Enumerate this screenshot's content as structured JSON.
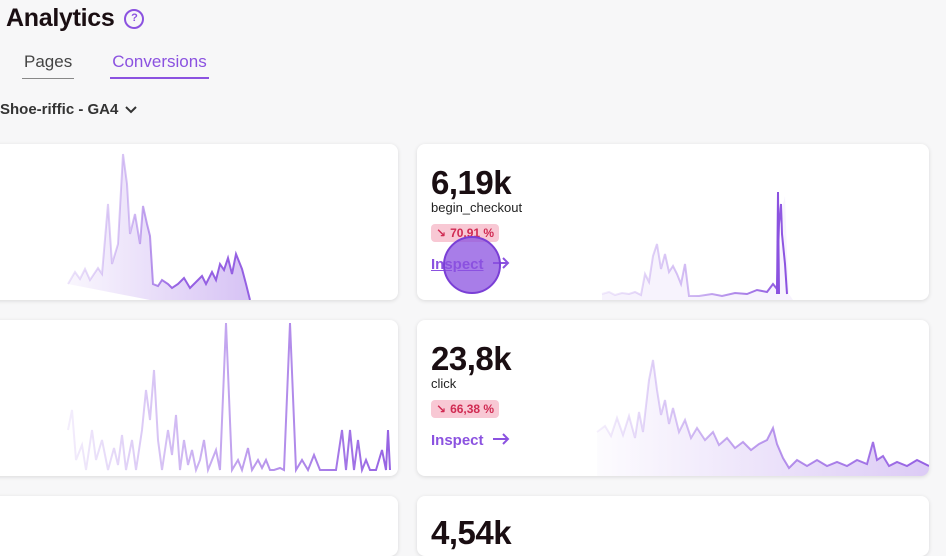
{
  "header": {
    "title": "Analytics",
    "help_icon": "help-circle-icon"
  },
  "tabs": [
    {
      "label": "Pages",
      "active": false
    },
    {
      "label": "Conversions",
      "active": true
    }
  ],
  "property_selector": {
    "label": "Shoe-riffic - GA4",
    "icon": "chevron-down-icon"
  },
  "colors": {
    "accent": "#8b52e0",
    "trend_down_bg": "#f8c8d4",
    "trend_down_text": "#d02a52"
  },
  "cards": [
    {
      "value": "",
      "event": "",
      "change": "",
      "inspect": ""
    },
    {
      "value": "6,19k",
      "event": "begin_checkout",
      "change": "70,91 %",
      "trend_icon": "trend-down-icon",
      "inspect": "Inspect",
      "inspect_icon": "arrow-right-icon"
    },
    {
      "value": "",
      "event": "",
      "change": "",
      "inspect": ""
    },
    {
      "value": "23,8k",
      "event": "click",
      "change": "66,38 %",
      "trend_icon": "trend-down-icon",
      "inspect": "Inspect",
      "inspect_icon": "arrow-right-icon"
    },
    {
      "value": "4,54k",
      "event": "",
      "change": "",
      "inspect": ""
    }
  ]
}
